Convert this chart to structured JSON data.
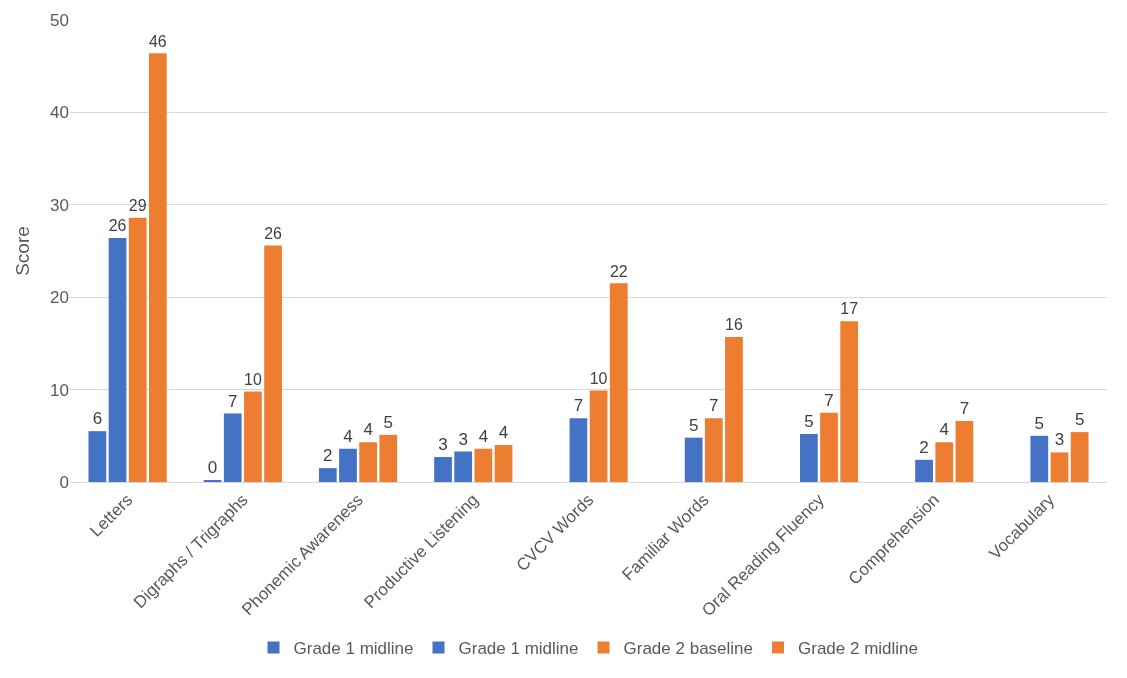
{
  "chart_data": {
    "type": "bar",
    "ylabel": "Score",
    "categories": [
      "Letters",
      "Digraphs / Trigraphs",
      "Phonemic Awareness",
      "Productive Listening",
      "CVCV Words",
      "Familiar Words",
      "Oral Reading Fluency",
      "Comprehension",
      "Vocabulary"
    ],
    "series": [
      {
        "name": "Grade 1 midline",
        "color": "#4472c4",
        "values": [
          5.5,
          0.2,
          1.5,
          2.7,
          null,
          null,
          null,
          null,
          null
        ],
        "value_labels": [
          "6",
          "0",
          "2",
          "3",
          null,
          null,
          null,
          null,
          null
        ]
      },
      {
        "name": "Grade 1 midline",
        "color": "#4472c4",
        "values": [
          26.4,
          7.4,
          3.6,
          3.3,
          6.9,
          4.8,
          5.2,
          2.4,
          5.0
        ],
        "value_labels": [
          "26",
          "7",
          "4",
          "3",
          "7",
          "5",
          "5",
          "2",
          "5"
        ]
      },
      {
        "name": "Grade 2 baseline",
        "color": "#ed7d31",
        "values": [
          28.6,
          9.8,
          4.3,
          3.6,
          9.9,
          6.9,
          7.5,
          4.3,
          3.2
        ],
        "value_labels": [
          "29",
          "10",
          "4",
          "4",
          "10",
          "7",
          "7",
          "4",
          "3"
        ]
      },
      {
        "name": "Grade 2 midline",
        "color": "#ed7d31",
        "values": [
          46.4,
          25.6,
          5.1,
          4.0,
          21.5,
          15.7,
          17.4,
          6.6,
          5.4
        ],
        "value_labels": [
          "46",
          "26",
          "5",
          "4",
          "22",
          "16",
          "17",
          "7",
          "5"
        ]
      }
    ],
    "ylim": [
      0,
      50
    ],
    "yticks": [
      0,
      10,
      20,
      30,
      40,
      50
    ],
    "grid": "y",
    "legend": "bottom"
  }
}
